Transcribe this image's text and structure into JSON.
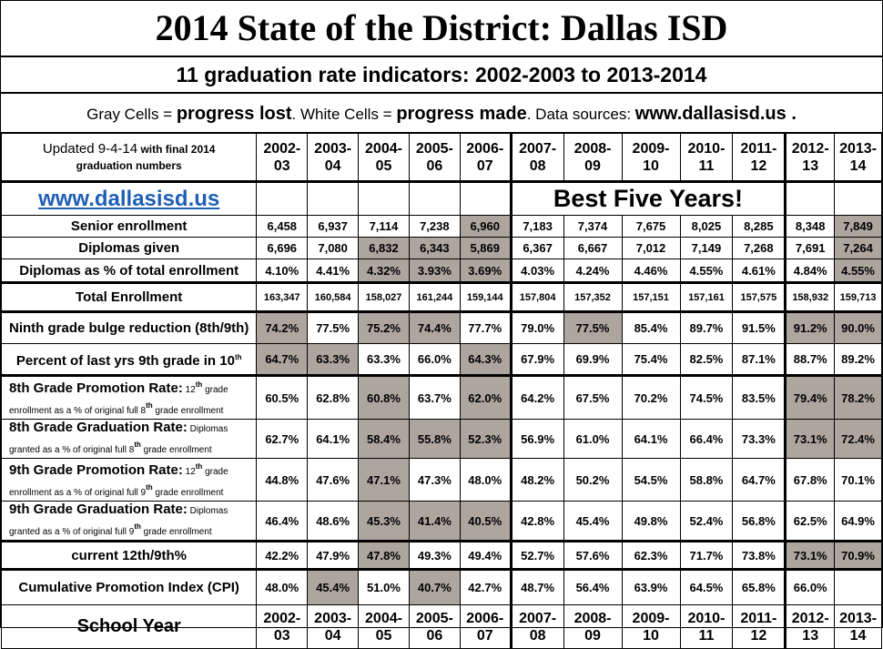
{
  "title": "2014 State of the District: Dallas ISD",
  "subtitle": "11 graduation rate indicators: 2002-2003 to 2013-2014",
  "legend": {
    "gray_label": "Gray Cells = ",
    "gray_bold": "progress lost",
    "mid": ".  White Cells = ",
    "white_bold": "progress made",
    "sources": ".  Data sources: ",
    "sources_bold": "www.dallasisd.us ."
  },
  "header": {
    "updated_main": "Updated 9-4-14",
    "updated_small": " with final 2014",
    "updated_line2": "graduation numbers",
    "years": [
      [
        "2002-",
        "03"
      ],
      [
        "2003-",
        "04"
      ],
      [
        "2004-",
        "05"
      ],
      [
        "2005-",
        "06"
      ],
      [
        "2006-",
        "07"
      ],
      [
        "2007-",
        "08"
      ],
      [
        "2008-",
        "09"
      ],
      [
        "2009-",
        "10"
      ],
      [
        "2010-",
        "11"
      ],
      [
        "2011-",
        "12"
      ],
      [
        "2012-",
        "13"
      ],
      [
        "2013-",
        "14"
      ]
    ]
  },
  "website": "www.dallasisd.us",
  "best_five": "Best Five Years!",
  "footer_label": "School Year",
  "colors": {
    "gray": "#aca69f",
    "link": "#1f5fb5"
  },
  "rows": [
    {
      "label": "Senior enrollment",
      "values": [
        "6,458",
        "6,937",
        "7,114",
        "7,238",
        "6,960",
        "7,183",
        "7,374",
        "7,675",
        "8,025",
        "8,285",
        "8,348",
        "7,849"
      ],
      "gray": [
        4,
        11
      ]
    },
    {
      "label": "Diplomas given",
      "values": [
        "6,696",
        "7,080",
        "6,832",
        "6,343",
        "5,869",
        "6,367",
        "6,667",
        "7,012",
        "7,149",
        "7,268",
        "7,691",
        "7,264"
      ],
      "gray": [
        2,
        3,
        4,
        11
      ]
    },
    {
      "label": "Diplomas as % of total enrollment",
      "values": [
        "4.10%",
        "4.41%",
        "4.32%",
        "3.93%",
        "3.69%",
        "4.03%",
        "4.24%",
        "4.46%",
        "4.55%",
        "4.61%",
        "4.84%",
        "4.55%"
      ],
      "gray": [
        2,
        3,
        4,
        11
      ]
    },
    {
      "label": "Total Enrollment",
      "values": [
        "163,347",
        "160,584",
        "158,027",
        "161,244",
        "159,144",
        "157,804",
        "157,352",
        "157,151",
        "157,161",
        "157,575",
        "158,932",
        "159,713"
      ],
      "gray": []
    },
    {
      "label": "Ninth grade bulge reduction (8th/9th)",
      "values": [
        "74.2%",
        "77.5%",
        "75.2%",
        "74.4%",
        "77.7%",
        "79.0%",
        "77.5%",
        "85.4%",
        "89.7%",
        "91.5%",
        "91.2%",
        "90.0%"
      ],
      "gray": [
        0,
        2,
        3,
        6,
        10,
        11
      ]
    },
    {
      "label": "Percent of last yrs 9th grade in 10",
      "label_sup": "th",
      "values": [
        "64.7%",
        "63.3%",
        "63.3%",
        "66.0%",
        "64.3%",
        "67.9%",
        "69.9%",
        "75.4%",
        "82.5%",
        "87.1%",
        "88.7%",
        "89.2%"
      ],
      "gray": [
        0,
        1,
        4
      ]
    },
    {
      "label": "8th Grade Promotion Rate:",
      "note_a": " 12",
      "note_a_sup": "th",
      "note_b": " grade",
      "note_c": "enrollment as a % of original full 8",
      "note_c_sup": "th",
      "note_d": " grade enrollment",
      "values": [
        "60.5%",
        "62.8%",
        "60.8%",
        "63.7%",
        "62.0%",
        "64.2%",
        "67.5%",
        "70.2%",
        "74.5%",
        "83.5%",
        "79.4%",
        "78.2%"
      ],
      "gray": [
        2,
        4,
        10,
        11
      ]
    },
    {
      "label": "8th Grade Graduation Rate:",
      "note_a": " Diplomas",
      "note_c": "granted as a % of original full 8",
      "note_c_sup": "th",
      "note_d": " grade enrollment",
      "values": [
        "62.7%",
        "64.1%",
        "58.4%",
        "55.8%",
        "52.3%",
        "56.9%",
        "61.0%",
        "64.1%",
        "66.4%",
        "73.3%",
        "73.1%",
        "72.4%"
      ],
      "gray": [
        2,
        3,
        4,
        10,
        11
      ]
    },
    {
      "label": "9th Grade Promotion Rate:",
      "note_a": " 12",
      "note_a_sup": "th",
      "note_b": " grade",
      "note_c": "enrollment as a % of original full 9",
      "note_c_sup": "th",
      "note_d": " grade enrollment",
      "values": [
        "44.8%",
        "47.6%",
        "47.1%",
        "47.3%",
        "48.0%",
        "48.2%",
        "50.2%",
        "54.5%",
        "58.8%",
        "64.7%",
        "67.8%",
        "70.1%"
      ],
      "gray": [
        2
      ]
    },
    {
      "label": "9th Grade Graduation Rate:",
      "note_a": " Diplomas",
      "note_c": "granted as a % of original full 9",
      "note_c_sup": "th",
      "note_d": " grade enrollment",
      "values": [
        "46.4%",
        "48.6%",
        "45.3%",
        "41.4%",
        "40.5%",
        "42.8%",
        "45.4%",
        "49.8%",
        "52.4%",
        "56.8%",
        "62.5%",
        "64.9%"
      ],
      "gray": [
        2,
        3,
        4
      ]
    },
    {
      "label": "current 12th/9th%",
      "values": [
        "42.2%",
        "47.9%",
        "47.8%",
        "49.3%",
        "49.4%",
        "52.7%",
        "57.6%",
        "62.3%",
        "71.7%",
        "73.8%",
        "73.1%",
        "70.9%"
      ],
      "gray": [
        2,
        10,
        11
      ]
    },
    {
      "label": "Cumulative Promotion Index (CPI)",
      "values": [
        "48.0%",
        "45.4%",
        "51.0%",
        "40.7%",
        "42.7%",
        "48.7%",
        "56.4%",
        "63.9%",
        "64.5%",
        "65.8%",
        "66.0%",
        ""
      ],
      "gray": [
        1,
        3
      ]
    }
  ]
}
